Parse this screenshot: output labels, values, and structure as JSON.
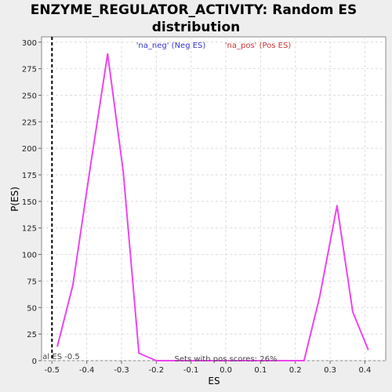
{
  "chart_data": {
    "type": "line",
    "title_line1": "ENZYME_REGULATOR_ACTIVITY: Random ES",
    "title_line2": "distribution",
    "xlabel": "ES",
    "ylabel": "P(ES)",
    "xlim": [
      -0.53,
      0.46
    ],
    "ylim": [
      0,
      305
    ],
    "x_ticks": [
      -0.5,
      -0.4,
      -0.3,
      -0.2,
      -0.1,
      0.0,
      0.1,
      0.2,
      0.3,
      0.4
    ],
    "x_tick_labels": [
      "-0.5",
      "-0.4",
      "-0.3",
      "-0.2",
      "-0.1",
      "0.0",
      "0.1",
      "0.2",
      "0.3",
      "0.4"
    ],
    "y_ticks": [
      0,
      25,
      50,
      75,
      100,
      125,
      150,
      175,
      200,
      225,
      250,
      275,
      300
    ],
    "y_tick_labels": [
      "0",
      "25",
      "50",
      "75",
      "100",
      "125",
      "150",
      "175",
      "200",
      "225",
      "250",
      "275",
      "300"
    ],
    "grid": true,
    "series": [
      {
        "color": "#ee44ee",
        "x": [
          -0.485,
          -0.44,
          -0.39,
          -0.34,
          -0.295,
          -0.25,
          -0.2,
          -0.15,
          -0.1,
          -0.05,
          0.0,
          0.05,
          0.1,
          0.15,
          0.2,
          0.225,
          0.27,
          0.32,
          0.365,
          0.41
        ],
        "y": [
          13,
          71,
          182,
          289,
          178,
          7,
          0,
          0,
          0,
          0,
          0,
          0,
          0,
          0,
          0,
          0,
          60,
          146,
          46,
          10
        ]
      }
    ],
    "actual_es": {
      "value": -0.5,
      "label": "al ES -0.5",
      "style": "dashed",
      "color": "#000000"
    },
    "legend": [
      {
        "text": "'na_neg' (Neg ES)",
        "color": "#3333cc"
      },
      {
        "text": "'na_pos' (Pos ES)",
        "color": "#cc3333"
      }
    ],
    "legend_placement": "top-center",
    "annotation": "Sets with pos scores: 26%"
  }
}
